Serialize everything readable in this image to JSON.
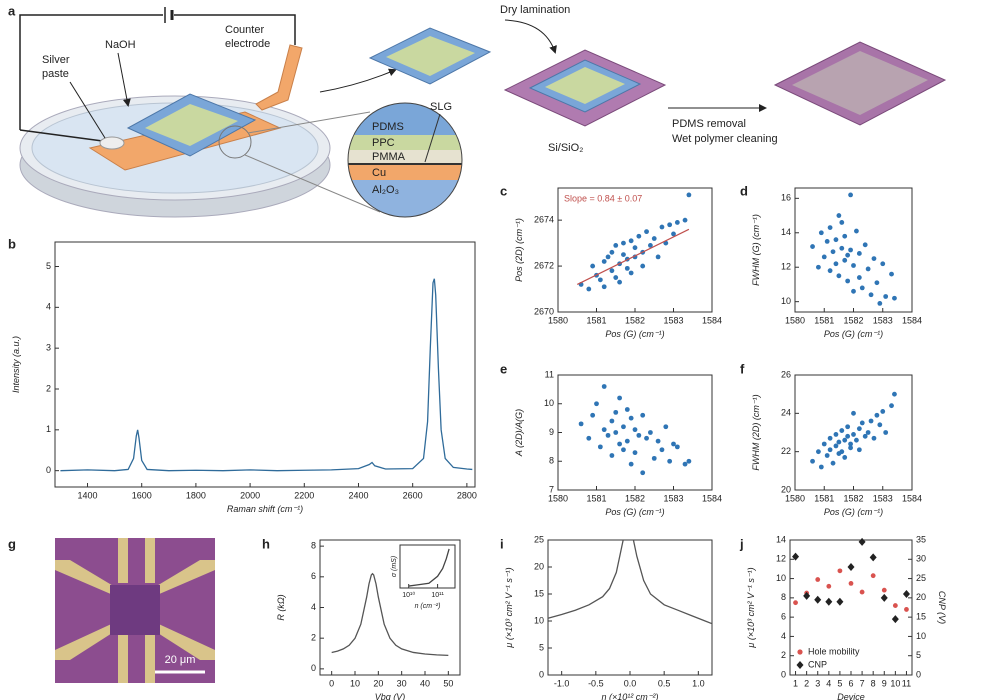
{
  "diagram": {
    "panel": "a",
    "naoh": "NaOH",
    "silver_paste": [
      "Silver",
      "paste"
    ],
    "counter_electrode": [
      "Counter",
      "electrode"
    ],
    "dry_lamination": "Dry lamination",
    "layers": [
      "PDMS",
      "PPC",
      "PMMA",
      "Cu",
      "Al₂O₃"
    ],
    "slg": "SLG",
    "substrate": "Si/SiO₂",
    "steps": [
      "PDMS removal",
      "Wet polymer cleaning"
    ]
  },
  "micrograph": {
    "panel": "g",
    "scale_bar": "20 μm"
  },
  "chart_data": [
    {
      "panel": "b",
      "type": "line",
      "color": "#2f6b9a",
      "x": [
        1300,
        1400,
        1500,
        1550,
        1570,
        1580,
        1585,
        1590,
        1600,
        1620,
        1700,
        1800,
        1900,
        2000,
        2100,
        2200,
        2300,
        2400,
        2440,
        2450,
        2460,
        2500,
        2600,
        2640,
        2655,
        2665,
        2675,
        2680,
        2685,
        2695,
        2705,
        2720,
        2750,
        2800,
        2820
      ],
      "values": [
        0,
        0.02,
        0,
        0.03,
        0.3,
        0.85,
        1.0,
        0.8,
        0.25,
        0.03,
        0,
        0.01,
        0,
        0.02,
        0,
        0.01,
        0.02,
        0.05,
        0.15,
        0.2,
        0.12,
        0.04,
        0.05,
        0.3,
        1.2,
        3.0,
        4.6,
        4.7,
        4.3,
        2.5,
        1.0,
        0.3,
        0.08,
        0.04,
        0.03
      ],
      "xlim": [
        1280,
        2830
      ],
      "xticks": [
        1400,
        1600,
        1800,
        2000,
        2200,
        2400,
        2600,
        2800
      ],
      "ylim": [
        -0.4,
        5.6
      ],
      "yticks": [
        0,
        1,
        2,
        3,
        4,
        5
      ],
      "xlabel": "Raman shift (cm⁻¹)",
      "ylabel": "Intensity (a.u.)"
    },
    {
      "panel": "c",
      "type": "scatter",
      "color": "#2f75b5",
      "x": [
        1580.6,
        1580.8,
        1580.9,
        1581.0,
        1581.1,
        1581.2,
        1581.2,
        1581.3,
        1581.4,
        1581.4,
        1581.5,
        1581.5,
        1581.6,
        1581.6,
        1581.7,
        1581.7,
        1581.8,
        1581.8,
        1581.9,
        1581.9,
        1582.0,
        1582.0,
        1582.1,
        1582.2,
        1582.2,
        1582.3,
        1582.4,
        1582.5,
        1582.6,
        1582.7,
        1582.8,
        1582.9,
        1583.0,
        1583.1,
        1583.3,
        1583.4
      ],
      "values": [
        2671.2,
        2671.0,
        2672.0,
        2671.6,
        2671.4,
        2672.2,
        2671.1,
        2672.4,
        2671.8,
        2672.6,
        2671.5,
        2672.9,
        2672.1,
        2671.3,
        2672.5,
        2673.0,
        2671.9,
        2672.3,
        2673.1,
        2671.7,
        2672.4,
        2672.8,
        2673.3,
        2672.0,
        2672.6,
        2673.5,
        2672.9,
        2673.2,
        2672.4,
        2673.7,
        2673.0,
        2673.8,
        2673.4,
        2673.9,
        2674.0,
        2675.1
      ],
      "xlim": [
        1580,
        1584
      ],
      "xticks": [
        1580,
        1581,
        1582,
        1583,
        1584
      ],
      "ylim": [
        2670,
        2675.4
      ],
      "yticks": [
        2670,
        2672,
        2674
      ],
      "xlabel": "Pos (G) (cm⁻¹)",
      "ylabel": "Pos (2D) (cm⁻¹)",
      "annotation": "Slope = 0.84 ± 0.07",
      "fit": {
        "x": [
          1580.5,
          1583.4
        ],
        "y": [
          2671.2,
          2673.6
        ],
        "color": "#c0504d"
      }
    },
    {
      "panel": "d",
      "type": "scatter",
      "color": "#2f75b5",
      "x": [
        1580.6,
        1580.8,
        1580.9,
        1581.0,
        1581.1,
        1581.2,
        1581.2,
        1581.3,
        1581.4,
        1581.4,
        1581.5,
        1581.5,
        1581.6,
        1581.6,
        1581.7,
        1581.7,
        1581.8,
        1581.8,
        1581.9,
        1581.9,
        1582.0,
        1582.0,
        1582.1,
        1582.2,
        1582.2,
        1582.3,
        1582.4,
        1582.5,
        1582.6,
        1582.7,
        1582.8,
        1582.9,
        1583.0,
        1583.1,
        1583.3,
        1583.4
      ],
      "values": [
        13.2,
        12.0,
        14.0,
        12.6,
        13.5,
        11.8,
        14.3,
        12.9,
        13.6,
        12.2,
        15.0,
        11.5,
        13.1,
        14.6,
        12.4,
        13.8,
        11.2,
        12.7,
        16.2,
        13.0,
        10.6,
        12.1,
        14.1,
        11.4,
        12.8,
        10.8,
        13.3,
        11.9,
        10.4,
        12.5,
        11.1,
        9.9,
        12.2,
        10.3,
        11.6,
        10.2
      ],
      "xlim": [
        1580,
        1584
      ],
      "xticks": [
        1580,
        1581,
        1582,
        1583,
        1584
      ],
      "ylim": [
        9.4,
        16.6
      ],
      "yticks": [
        10,
        12,
        14,
        16
      ],
      "xlabel": "Pos (G) (cm⁻¹)",
      "ylabel": "FWHM (G) (cm⁻¹)"
    },
    {
      "panel": "e",
      "type": "scatter",
      "color": "#2f75b5",
      "x": [
        1580.6,
        1580.8,
        1580.9,
        1581.0,
        1581.1,
        1581.2,
        1581.2,
        1581.3,
        1581.4,
        1581.4,
        1581.5,
        1581.5,
        1581.6,
        1581.6,
        1581.7,
        1581.7,
        1581.8,
        1581.8,
        1581.9,
        1581.9,
        1582.0,
        1582.0,
        1582.1,
        1582.2,
        1582.2,
        1582.3,
        1582.4,
        1582.5,
        1582.6,
        1582.7,
        1582.8,
        1582.9,
        1583.0,
        1583.1,
        1583.3,
        1583.4
      ],
      "values": [
        9.3,
        8.8,
        9.6,
        10.0,
        8.5,
        9.1,
        10.6,
        8.9,
        9.4,
        8.2,
        9.7,
        9.0,
        8.6,
        10.2,
        9.2,
        8.4,
        9.8,
        8.7,
        9.5,
        7.9,
        9.1,
        8.3,
        8.9,
        9.6,
        7.6,
        8.8,
        9.0,
        8.1,
        8.7,
        8.4,
        9.2,
        8.0,
        8.6,
        8.5,
        7.9,
        8.0
      ],
      "xlim": [
        1580,
        1584
      ],
      "xticks": [
        1580,
        1581,
        1582,
        1583,
        1584
      ],
      "ylim": [
        7,
        11
      ],
      "yticks": [
        7,
        8,
        9,
        10,
        11
      ],
      "xlabel": "Pos (G) (cm⁻¹)",
      "ylabel": "A (2D)/A(G)"
    },
    {
      "panel": "f",
      "type": "scatter",
      "color": "#2f75b5",
      "x": [
        1580.6,
        1580.8,
        1580.9,
        1581.0,
        1581.1,
        1581.2,
        1581.2,
        1581.3,
        1581.4,
        1581.4,
        1581.5,
        1581.5,
        1581.6,
        1581.6,
        1581.7,
        1581.7,
        1581.8,
        1581.8,
        1581.9,
        1581.9,
        1582.0,
        1582.0,
        1582.1,
        1582.2,
        1582.2,
        1582.3,
        1582.4,
        1582.5,
        1582.6,
        1582.7,
        1582.8,
        1582.9,
        1583.0,
        1583.1,
        1583.3,
        1583.4
      ],
      "values": [
        21.5,
        22.0,
        21.2,
        22.4,
        21.8,
        22.1,
        22.7,
        21.4,
        22.3,
        22.9,
        21.9,
        22.5,
        23.1,
        22.0,
        22.6,
        21.7,
        22.8,
        23.3,
        22.2,
        22.4,
        24.0,
        22.9,
        22.6,
        23.2,
        22.1,
        23.5,
        22.8,
        23.0,
        23.6,
        22.7,
        23.9,
        23.4,
        24.1,
        23.0,
        24.4,
        25.0
      ],
      "xlim": [
        1580,
        1584
      ],
      "xticks": [
        1580,
        1581,
        1582,
        1583,
        1584
      ],
      "ylim": [
        20,
        26
      ],
      "yticks": [
        20,
        22,
        24,
        26
      ],
      "xlabel": "Pos (G) (cm⁻¹)",
      "ylabel": "FWHM (2D) (cm⁻¹)"
    },
    {
      "panel": "h",
      "type": "line",
      "color": "#555555",
      "x": [
        0,
        2.5,
        5,
        7.5,
        10,
        12.5,
        15,
        16,
        17,
        17.5,
        18,
        19,
        20,
        22.5,
        25,
        27.5,
        30,
        35,
        40,
        45,
        50
      ],
      "values": [
        1.07,
        1.16,
        1.3,
        1.54,
        1.99,
        2.91,
        4.68,
        5.54,
        6.12,
        6.2,
        6.12,
        5.54,
        4.68,
        2.91,
        1.99,
        1.54,
        1.3,
        1.07,
        0.97,
        0.91,
        0.88
      ],
      "xlim": [
        -5,
        55
      ],
      "xticks": [
        0,
        10,
        20,
        30,
        40,
        50
      ],
      "ylim": [
        -0.4,
        8.4
      ],
      "yticks": [
        0,
        2,
        4,
        6,
        8
      ],
      "xlabel": "Vbg (V)",
      "ylabel": "R (kΩ)",
      "inset": {
        "type": "line",
        "color": "#444444",
        "xscale": "log",
        "x": [
          10000000000,
          20000000000,
          50000000000,
          100000000000,
          150000000000,
          200000000000,
          250000000000
        ],
        "values": [
          0.05,
          0.08,
          0.12,
          0.3,
          0.5,
          0.75,
          1.0
        ],
        "xlim": [
          5000000000,
          400000000000
        ],
        "xticks": [
          {
            "value": 10000000000,
            "label": "10¹⁰"
          },
          {
            "value": 100000000000,
            "label": "10¹¹"
          }
        ],
        "ylim": [
          0,
          1.1
        ],
        "xlabel": "n (cm⁻²)",
        "ylabel": "σ (mS)"
      }
    },
    {
      "panel": "i",
      "type": "line",
      "color": "#555555",
      "x": [
        -1.2,
        -1.0,
        -0.8,
        -0.6,
        -0.4,
        -0.3,
        -0.2,
        -0.15,
        -0.1,
        0,
        0.05,
        0.1,
        0.2,
        0.3,
        0.5,
        0.7,
        0.9,
        1.1,
        1.2
      ],
      "values": [
        10.5,
        11.2,
        12,
        13,
        14.5,
        16,
        19,
        22,
        25,
        null,
        25,
        22,
        17.5,
        15,
        13,
        12,
        11,
        10,
        9.5
      ],
      "xlim": [
        -1.2,
        1.2
      ],
      "xticks": [
        {
          "value": -1,
          "label": "-1.0"
        },
        {
          "value": -0.5,
          "label": "-0.5"
        },
        {
          "value": 0,
          "label": "0.0"
        },
        0.5,
        {
          "value": 1,
          "label": "1.0"
        }
      ],
      "ylim": [
        0,
        25
      ],
      "yticks": [
        0,
        5,
        10,
        15,
        20,
        25
      ],
      "xlabel": "n (×10¹² cm⁻²)",
      "ylabel": "μ (×10³ cm² V⁻¹ s⁻¹)"
    },
    {
      "panel": "j",
      "type": "scatter",
      "x": [
        1,
        2,
        3,
        4,
        5,
        6,
        7,
        8,
        9,
        10,
        11
      ],
      "series": [
        {
          "name": "Hole mobility",
          "color": "#d9534f",
          "marker": "circle",
          "values": [
            7.5,
            8.5,
            9.9,
            9.2,
            10.8,
            9.5,
            8.6,
            10.3,
            8.8,
            7.2,
            6.8
          ]
        },
        {
          "name": "CNP",
          "color": "#222222",
          "marker": "diamond",
          "axis": "y2",
          "values": [
            30.7,
            20.5,
            19.5,
            19,
            19,
            28,
            34.5,
            30.5,
            20,
            14.5,
            21
          ]
        }
      ],
      "xlim": [
        0.5,
        11.5
      ],
      "xticks": [
        1,
        2,
        3,
        4,
        5,
        6,
        7,
        8,
        9,
        10,
        11
      ],
      "ylim": [
        0,
        14
      ],
      "yticks": [
        0,
        2,
        4,
        6,
        8,
        10,
        12,
        14
      ],
      "y2lim": [
        0,
        35
      ],
      "y2ticks": [
        0,
        5,
        10,
        15,
        20,
        25,
        30,
        35
      ],
      "xlabel": "Device",
      "ylabel": "μ (×10³ cm² V⁻¹ s⁻¹)",
      "y2label": "CNP (V)",
      "legend": "lower left"
    }
  ]
}
